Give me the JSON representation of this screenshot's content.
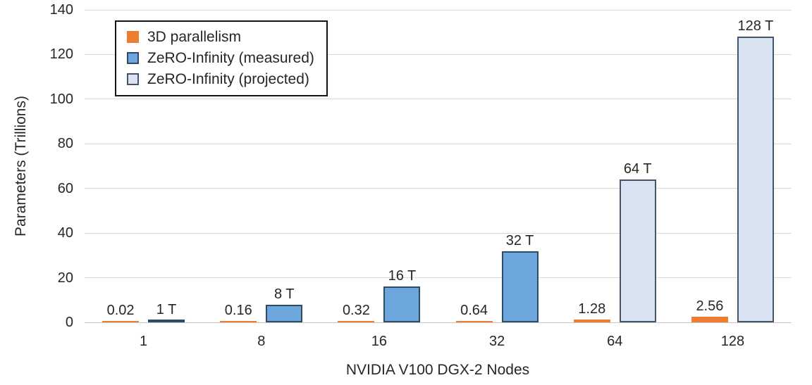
{
  "chart_data": {
    "type": "bar",
    "title": "",
    "xlabel": "NVIDIA V100 DGX-2 Nodes",
    "ylabel": "Parameters (Trillions)",
    "ylim": [
      0,
      140
    ],
    "yticks": [
      0,
      20,
      40,
      60,
      80,
      100,
      120,
      140
    ],
    "grid": "horizontal",
    "legend_position": "top-left",
    "categories": [
      "1",
      "8",
      "16",
      "32",
      "64",
      "128"
    ],
    "series": [
      {
        "name": "3D parallelism",
        "color": "#ED7D31",
        "border": null,
        "values": [
          0.02,
          0.16,
          0.32,
          0.64,
          1.28,
          2.56
        ],
        "labels": [
          "0.02",
          "0.16",
          "0.32",
          "0.64",
          "1.28",
          "2.56"
        ]
      },
      {
        "name": "ZeRO-Infinity (measured)",
        "color": "#6CA6DC",
        "border": "#2F4A63",
        "values": [
          1,
          8,
          16,
          32,
          null,
          null
        ],
        "labels": [
          "1 T",
          "8 T",
          "16 T",
          "32 T",
          null,
          null
        ]
      },
      {
        "name": "ZeRO-Infinity (projected)",
        "color": "#DAE3F1",
        "border": "#44546A",
        "values": [
          null,
          null,
          null,
          null,
          64,
          128
        ],
        "labels": [
          null,
          null,
          null,
          null,
          "64 T",
          "128 T"
        ]
      }
    ]
  }
}
